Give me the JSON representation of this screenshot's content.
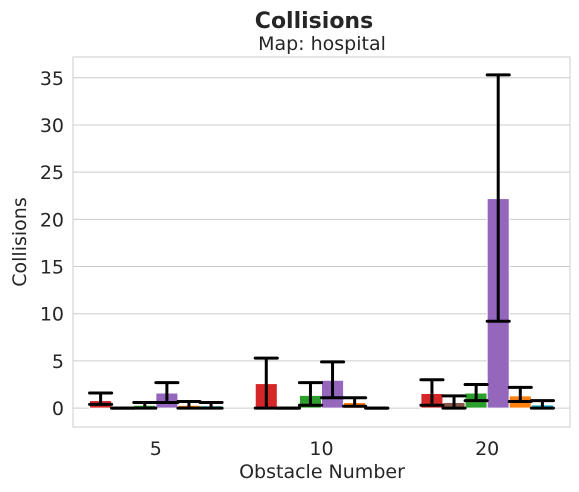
{
  "chart_data": {
    "type": "bar",
    "title": "Collisions",
    "subtitle": "Map: hospital",
    "xlabel": "Obstacle Number",
    "ylabel": "Collisions",
    "ylim": [
      -2,
      37.2
    ],
    "yticks": [
      0,
      5,
      10,
      15,
      20,
      25,
      30,
      35
    ],
    "grid": true,
    "categories": [
      "5",
      "10",
      "20"
    ],
    "series": [
      {
        "color": "#d62728",
        "values": [
          0.8,
          2.6,
          1.55
        ],
        "err_low": [
          0.4,
          0.0,
          0.3
        ],
        "err_high": [
          1.6,
          5.3,
          3.0
        ]
      },
      {
        "color": "#8c564b",
        "values": [
          0.0,
          0.0,
          0.6
        ],
        "err_low": [
          0.0,
          0.0,
          0.0
        ],
        "err_high": [
          0.0,
          0.0,
          1.3
        ]
      },
      {
        "color": "#2ca02c",
        "values": [
          0.3,
          1.35,
          1.6
        ],
        "err_low": [
          0.0,
          0.3,
          0.8
        ],
        "err_high": [
          0.6,
          2.7,
          2.5
        ]
      },
      {
        "color": "#9467bd",
        "values": [
          1.6,
          2.95,
          22.2
        ],
        "err_low": [
          0.6,
          1.1,
          9.2
        ],
        "err_high": [
          2.7,
          4.9,
          35.3
        ]
      },
      {
        "color": "#ff7f0e",
        "values": [
          0.3,
          0.6,
          1.3
        ],
        "err_low": [
          0.0,
          0.2,
          0.7
        ],
        "err_high": [
          0.7,
          1.1,
          2.2
        ]
      },
      {
        "color": "#17becf",
        "values": [
          0.25,
          0.0,
          0.35
        ],
        "err_low": [
          0.0,
          0.0,
          0.0
        ],
        "err_high": [
          0.6,
          0.0,
          0.8
        ]
      }
    ]
  }
}
